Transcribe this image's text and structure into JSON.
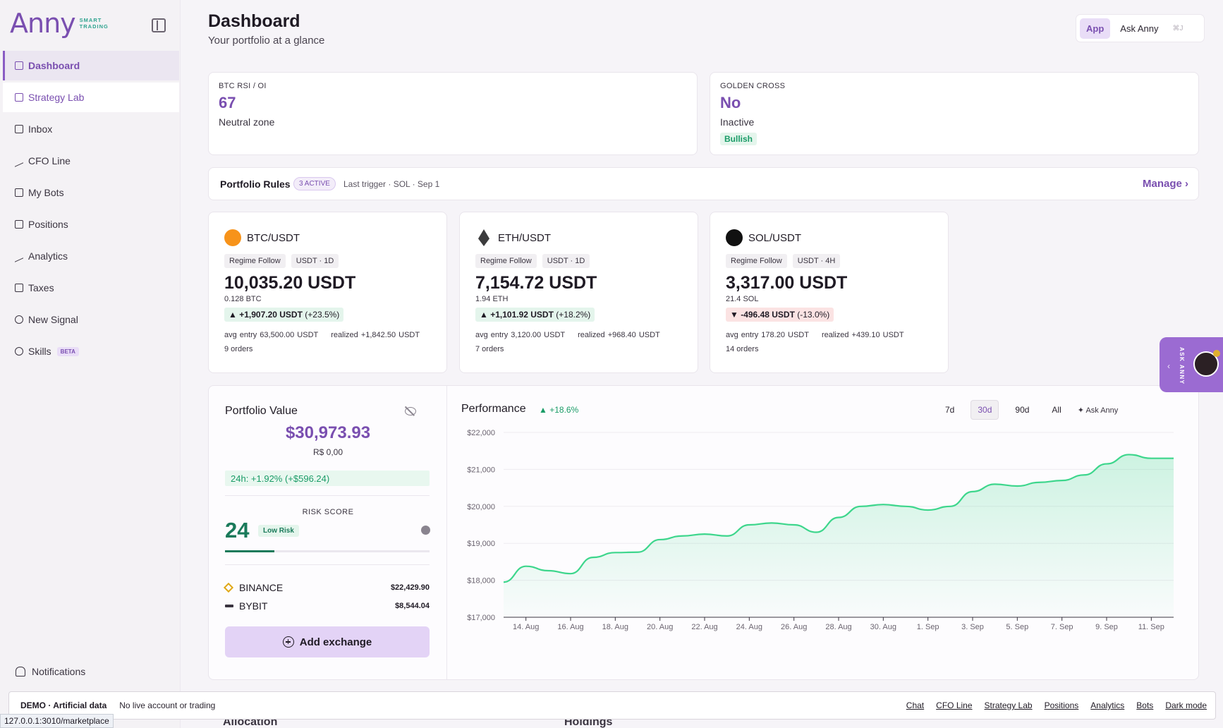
{
  "brand": {
    "name": "Anny",
    "tagline_1": "SMART",
    "tagline_2": "TRADING"
  },
  "nav": [
    {
      "label": "Dashboard",
      "icon": "grid-icon"
    },
    {
      "label": "Strategy Lab",
      "icon": "flask-icon"
    },
    {
      "label": "Inbox",
      "icon": "inbox-icon"
    },
    {
      "label": "CFO Line",
      "icon": "trend-icon"
    },
    {
      "label": "My Bots",
      "icon": "bot-icon"
    },
    {
      "label": "Positions",
      "icon": "briefcase-icon"
    },
    {
      "label": "Analytics",
      "icon": "bar-chart-icon"
    },
    {
      "label": "Taxes",
      "icon": "receipt-icon"
    },
    {
      "label": "New Signal",
      "icon": "plus-circle-icon"
    },
    {
      "label": "Skills",
      "icon": "sparkle-icon",
      "badge": "BETA"
    }
  ],
  "notifications_label": "Notifications",
  "header": {
    "title": "Dashboard",
    "subtitle": "Your portfolio at a glance"
  },
  "mode": {
    "app": "App",
    "ask": "Ask Anny",
    "shortcut": "⌘J"
  },
  "indicators": [
    {
      "label": "BTC RSI / OI",
      "value": "67",
      "desc": "Neutral zone"
    },
    {
      "label": "GOLDEN CROSS",
      "value": "No",
      "desc": "Inactive",
      "badge": "Bullish"
    }
  ],
  "rules": {
    "title": "Portfolio Rules",
    "badge": "3 ACTIVE",
    "last": "Last trigger · SOL · Sep 1",
    "manage": "Manage ›"
  },
  "positions": [
    {
      "pair": "BTC/USDT",
      "tag1": "Regime Follow",
      "tag2": "USDT · 1D",
      "amount": "10,035.20 USDT",
      "qty": "0.128 BTC",
      "pnl": "▲ +1,907.20 USDT",
      "pct": "(+23.5%)",
      "dir": "up",
      "avg": "avg entry 63,500.00 USDT",
      "realized": "realized +1,842.50 USDT",
      "orders": "9 orders",
      "color": "#f7931a"
    },
    {
      "pair": "ETH/USDT",
      "tag1": "Regime Follow",
      "tag2": "USDT · 1D",
      "amount": "7,154.72 USDT",
      "qty": "1.94 ETH",
      "pnl": "▲ +1,101.92 USDT",
      "pct": "(+18.2%)",
      "dir": "up",
      "avg": "avg entry 3,120.00 USDT",
      "realized": "realized +968.40 USDT",
      "orders": "7 orders",
      "color": "#3c3c3d"
    },
    {
      "pair": "SOL/USDT",
      "tag1": "Regime Follow",
      "tag2": "USDT · 4H",
      "amount": "3,317.00 USDT",
      "qty": "21.4 SOL",
      "pnl": "▼ -496.48 USDT",
      "pct": "(-13.0%)",
      "dir": "down",
      "avg": "avg entry 178.20 USDT",
      "realized": "realized +439.10 USDT",
      "orders": "14 orders",
      "color": "#111111"
    }
  ],
  "portfolio": {
    "title": "Portfolio Value",
    "value": "$30,973.93",
    "brl": "R$ 0,00",
    "change_24h": "24h: +1.92% (+$596.24)",
    "risk_label": "RISK SCORE",
    "risk_score": "24",
    "risk_level": "Low Risk",
    "risk_fraction": 0.24,
    "exchanges": [
      {
        "name": "BINANCE",
        "amount": "$22,429.90"
      },
      {
        "name": "BYBIT",
        "amount": "$8,544.04"
      }
    ],
    "add_exchange": "Add exchange"
  },
  "performance": {
    "title": "Performance",
    "change": "▲ +18.6%",
    "ranges": [
      "7d",
      "30d",
      "90d",
      "All"
    ],
    "selected_range": "30d",
    "ask": "Ask Anny"
  },
  "chart_data": {
    "type": "area",
    "title": "Performance",
    "x": [
      "13 Aug",
      "14 Aug",
      "15 Aug",
      "16 Aug",
      "17 Aug",
      "18 Aug",
      "19 Aug",
      "20 Aug",
      "21 Aug",
      "22 Aug",
      "23 Aug",
      "24 Aug",
      "25 Aug",
      "26 Aug",
      "27 Aug",
      "28 Aug",
      "29 Aug",
      "30 Aug",
      "31 Aug",
      "1 Sep",
      "2 Sep",
      "3 Sep",
      "4 Sep",
      "5 Sep",
      "6 Sep",
      "7 Sep",
      "8 Sep",
      "9 Sep",
      "10 Sep",
      "11 Sep",
      "12 Sep"
    ],
    "values": [
      17950,
      18380,
      18260,
      18180,
      18620,
      18750,
      18760,
      19100,
      19200,
      19250,
      19200,
      19500,
      19550,
      19500,
      19300,
      19700,
      20000,
      20050,
      20000,
      19900,
      20000,
      20400,
      20600,
      20550,
      20650,
      20700,
      20850,
      21150,
      21400,
      21300,
      21300
    ],
    "xticks": [
      "14. Aug",
      "16. Aug",
      "18. Aug",
      "20. Aug",
      "22. Aug",
      "24. Aug",
      "26. Aug",
      "28. Aug",
      "30. Aug",
      "1. Sep",
      "3. Sep",
      "5. Sep",
      "7. Sep",
      "9. Sep",
      "11. Sep"
    ],
    "yticks": [
      "$22,000",
      "$21,000",
      "$20,000",
      "$19,000",
      "$18,000",
      "$17,000"
    ],
    "ylim": [
      17000,
      22000
    ],
    "color": "#3dd68c"
  },
  "footer": {
    "demo": "DEMO · Artificial data",
    "note": "No live account or trading",
    "links": [
      "Chat",
      "CFO Line",
      "Strategy Lab",
      "Positions",
      "Analytics",
      "Bots",
      "Dark mode"
    ]
  },
  "url": "127.0.0.1:3010/marketplace",
  "behind": {
    "allocation": "Allocation",
    "holdings": "Holdings"
  },
  "ask_tab": "ASK ANNY"
}
